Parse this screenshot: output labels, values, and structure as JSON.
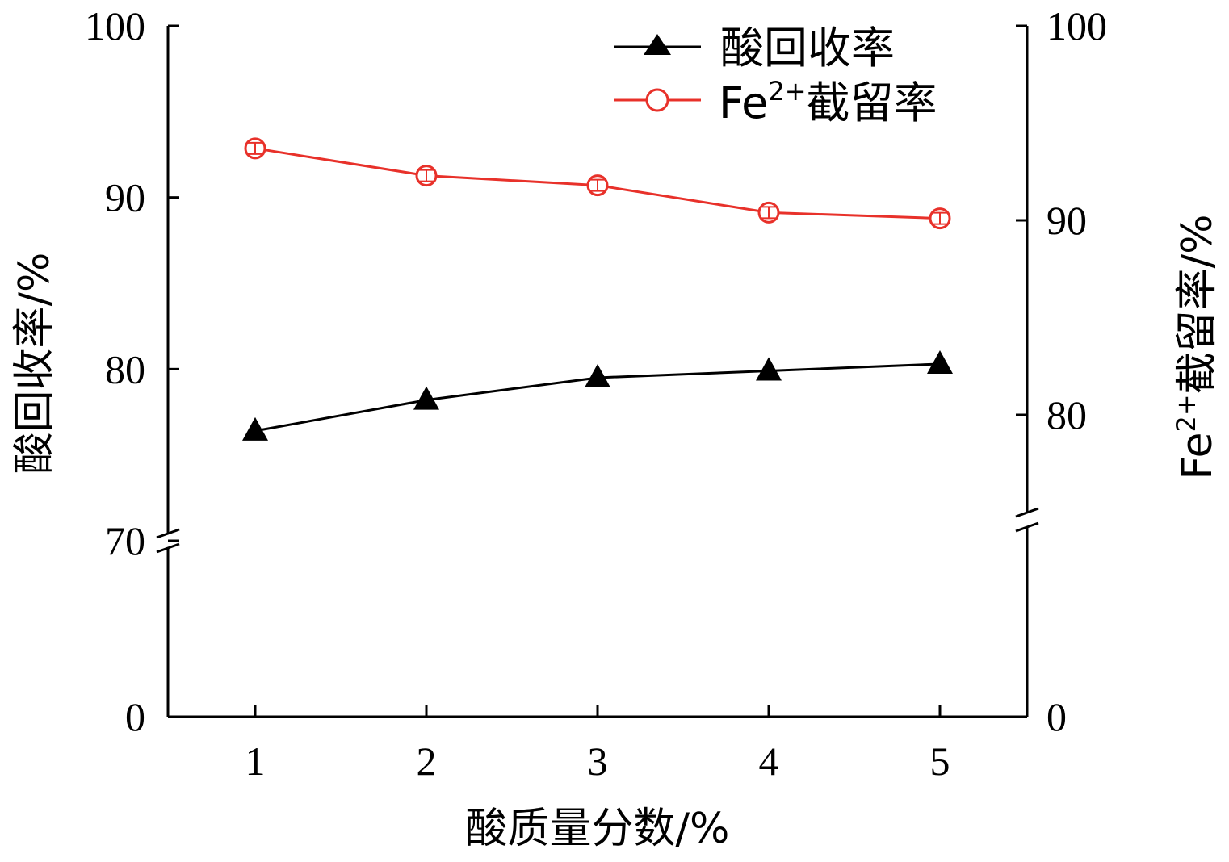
{
  "chart_data": {
    "type": "line",
    "x": [
      1,
      2,
      3,
      4,
      5
    ],
    "xlabel": "酸质量分数/%",
    "ylabel_left": "酸回收率/%",
    "ylabel_right": {
      "base": "Fe",
      "sup": "2+",
      "rest": "截留率/%"
    },
    "x_ticks": [
      "1",
      "2",
      "3",
      "4",
      "5"
    ],
    "y_left_ticks": [
      "0",
      "70",
      "80",
      "90",
      "100"
    ],
    "y_right_ticks": [
      "0",
      "80",
      "90",
      "100"
    ],
    "y_left_axis": {
      "broken": true,
      "lower_range": [
        0,
        70
      ],
      "upper_range": [
        70,
        100
      ]
    },
    "y_right_axis": {
      "broken": true,
      "upper_range": [
        75,
        100
      ]
    },
    "series": [
      {
        "name": "酸回收率",
        "axis": "left",
        "marker": "filled-triangle",
        "color": "#000000",
        "values": [
          76.4,
          78.2,
          79.5,
          79.9,
          80.3
        ]
      },
      {
        "name_parts": {
          "base": "Fe",
          "sup": "2+",
          "rest": "截留率"
        },
        "axis": "right",
        "marker": "open-circle-with-errorbar",
        "color": "#e8312a",
        "values": [
          93.7,
          92.3,
          91.8,
          90.4,
          90.1
        ]
      }
    ],
    "legend_position": "top-right",
    "grid": false
  }
}
